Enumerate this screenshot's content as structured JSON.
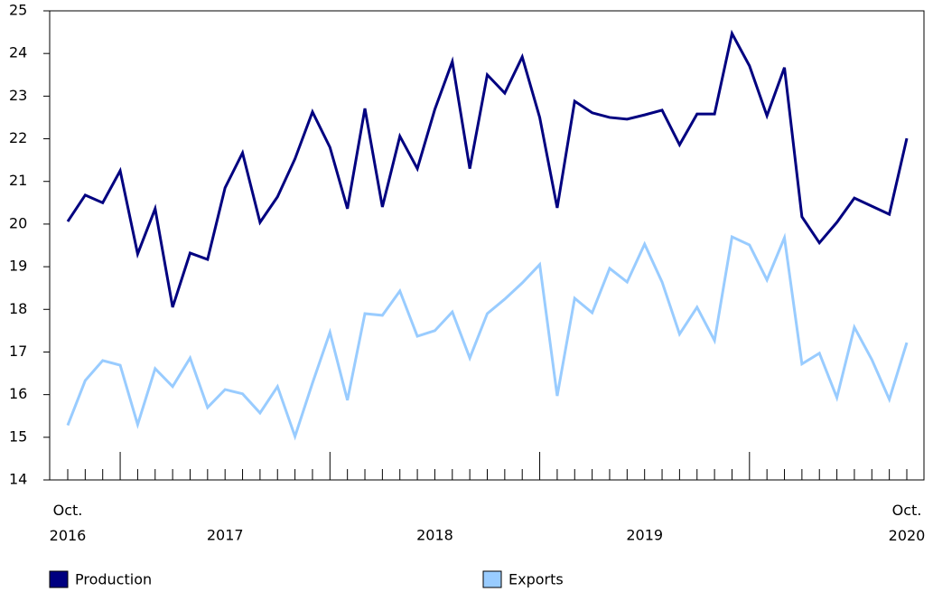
{
  "chart_data": {
    "type": "line",
    "categories": [
      "Oct. 2016",
      null,
      null,
      null,
      null,
      null,
      null,
      null,
      null,
      null,
      null,
      null,
      null,
      null,
      null,
      null,
      null,
      null,
      null,
      null,
      null,
      null,
      null,
      null,
      null,
      null,
      null,
      null,
      null,
      null,
      null,
      null,
      null,
      null,
      null,
      null,
      null,
      null,
      null,
      null,
      null,
      null,
      null,
      null,
      null,
      null,
      null,
      null,
      "Oct. 2020"
    ],
    "year_labels": [
      "2017",
      "2018",
      "2019"
    ],
    "series": [
      {
        "name": "Production",
        "color": "#000080",
        "values": [
          20.06,
          20.68,
          20.5,
          21.25,
          19.3,
          20.36,
          18.05,
          19.32,
          19.17,
          20.85,
          21.67,
          20.04,
          20.64,
          21.53,
          22.63,
          21.8,
          20.36,
          22.71,
          20.4,
          22.06,
          21.3,
          22.69,
          23.81,
          21.3,
          23.5,
          23.07,
          23.92,
          22.5,
          20.38,
          22.88,
          22.61,
          22.5,
          22.46,
          22.56,
          22.67,
          21.86,
          22.58,
          22.58,
          24.47,
          23.71,
          22.54,
          23.67,
          20.17,
          19.56,
          20.04,
          20.61,
          20.42,
          20.23,
          22.01
        ]
      },
      {
        "name": "Exports",
        "color": "#99ccff",
        "values": [
          15.28,
          16.33,
          16.8,
          16.69,
          15.3,
          16.61,
          16.19,
          16.86,
          15.7,
          16.12,
          16.02,
          15.57,
          16.19,
          15.02,
          16.27,
          17.46,
          15.87,
          17.9,
          17.86,
          18.43,
          17.37,
          17.5,
          17.94,
          16.86,
          17.9,
          18.24,
          18.62,
          19.05,
          15.97,
          18.26,
          17.92,
          18.96,
          18.64,
          19.53,
          18.64,
          17.42,
          18.05,
          17.27,
          19.7,
          19.51,
          18.69,
          19.68,
          16.72,
          16.97,
          15.93,
          17.58,
          16.82,
          15.89,
          17.22
        ]
      }
    ],
    "ylim": [
      14,
      25
    ],
    "yticks": [
      14,
      15,
      16,
      17,
      18,
      19,
      20,
      21,
      22,
      23,
      24,
      25
    ],
    "grid": false
  }
}
